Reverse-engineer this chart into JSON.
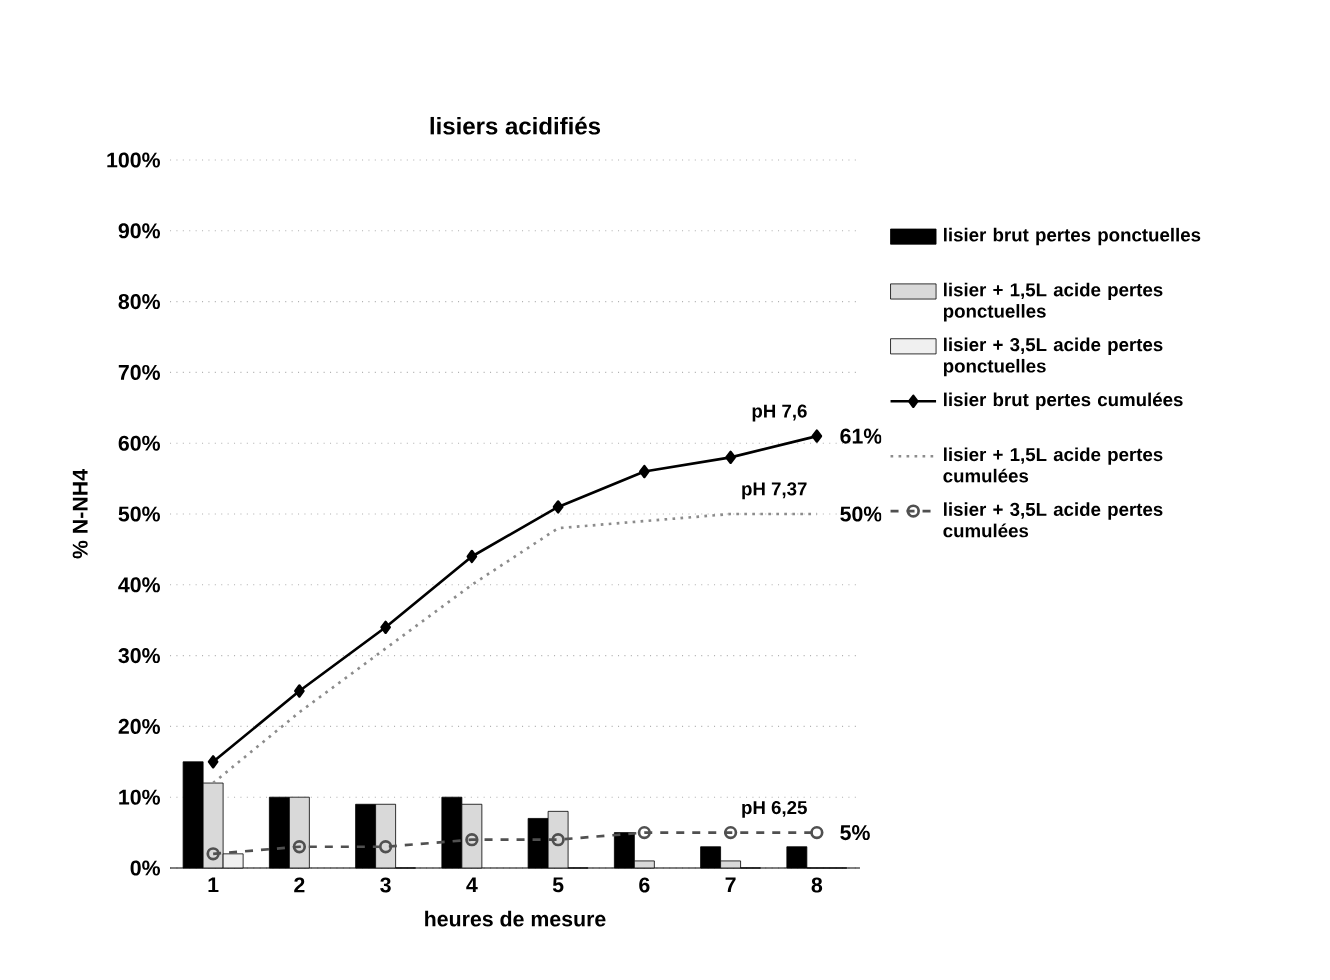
{
  "chart_data": {
    "type": "bar",
    "title": "lisiers acidifiés",
    "xlabel": "heures de mesure",
    "ylabel": "% N-NH4",
    "categories": [
      "1",
      "2",
      "3",
      "4",
      "5",
      "6",
      "7",
      "8"
    ],
    "series": [
      {
        "name": "lisier brut pertes ponctuelles",
        "color": "#000000",
        "values": [
          15,
          10,
          9,
          10,
          7,
          5,
          3,
          3
        ]
      },
      {
        "name": "lisier + 1,5L acide pertes ponctuelles",
        "color": "#d9d9d9",
        "values": [
          12,
          10,
          9,
          9,
          8,
          1,
          1,
          0
        ]
      },
      {
        "name": "lisier + 3,5L acide pertes ponctuelles",
        "color": "#f0f0f0",
        "values": [
          2,
          null,
          0,
          null,
          0,
          null,
          0,
          0
        ]
      },
      {
        "name": "lisier brut pertes cumulées",
        "type": "line",
        "color": "#000000",
        "marker": "diamond",
        "line_style": "solid",
        "values": [
          15,
          25,
          34,
          44,
          51,
          56,
          58,
          61
        ],
        "value_labels": [
          null,
          null,
          null,
          null,
          null,
          null,
          null,
          "61%"
        ]
      },
      {
        "name": "lisier + 1,5L acide pertes cumulées",
        "type": "line",
        "color": "#8c8c8c",
        "marker": "none",
        "line_style": "dotted",
        "values": [
          12,
          22,
          31,
          40,
          48,
          49,
          50,
          50
        ],
        "value_labels": [
          null,
          null,
          null,
          null,
          null,
          null,
          null,
          "50%"
        ]
      },
      {
        "name": "lisier + 3,5L acide pertes cumulées",
        "type": "line",
        "color": "#505050",
        "marker": "circle",
        "line_style": "dashed",
        "values": [
          2,
          3,
          3,
          4,
          4,
          5,
          5,
          5
        ],
        "value_labels": [
          null,
          null,
          null,
          null,
          null,
          null,
          null,
          "5%"
        ]
      }
    ],
    "annotations": [
      {
        "text": "pH 7,6",
        "x": "8",
        "y": 61
      },
      {
        "text": "pH 7,37",
        "x": "8",
        "y": 50
      },
      {
        "text": "pH 6,25",
        "x": "8",
        "y": 5
      }
    ],
    "ylim": [
      0,
      100
    ],
    "yticks": [
      {
        "value": 0,
        "label": "0%"
      },
      {
        "value": 10,
        "label": "10%"
      },
      {
        "value": 20,
        "label": "20%"
      },
      {
        "value": 30,
        "label": "30%"
      },
      {
        "value": 40,
        "label": "40%"
      },
      {
        "value": 50,
        "label": "50%"
      },
      {
        "value": 60,
        "label": "60%"
      },
      {
        "value": 70,
        "label": "70%"
      },
      {
        "value": 80,
        "label": "80%"
      },
      {
        "value": 90,
        "label": "90%"
      },
      {
        "value": 100,
        "label": "100%"
      }
    ],
    "grid": "y",
    "legend": "right"
  }
}
